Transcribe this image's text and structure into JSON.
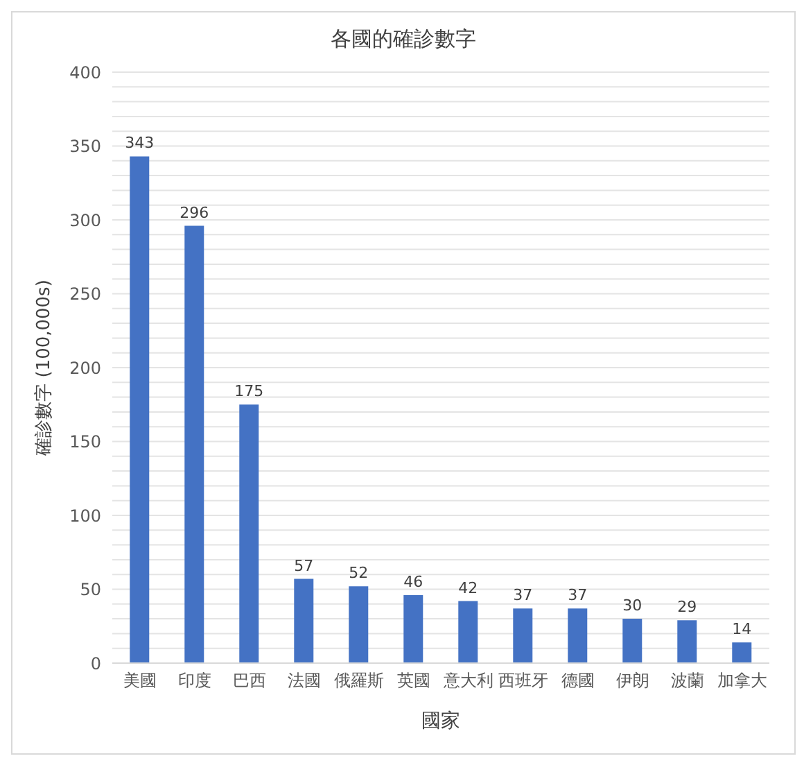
{
  "chart_data": {
    "type": "bar",
    "title": "各國的確診數字",
    "xlabel": "國家",
    "ylabel": "確診數字 (100,000s)",
    "categories": [
      "美國",
      "印度",
      "巴西",
      "法國",
      "俄羅斯",
      "英國",
      "意大利",
      "西班牙",
      "德國",
      "伊朗",
      "波蘭",
      "加拿大"
    ],
    "values": [
      343,
      296,
      175,
      57,
      52,
      46,
      42,
      37,
      37,
      30,
      29,
      14
    ],
    "color": "#4472c4",
    "data_labels": true,
    "grid": "y",
    "ylim": [
      0,
      400
    ],
    "yticks": [
      0,
      {
        "value": 10,
        "label": null
      },
      {
        "value": 20,
        "label": null
      },
      {
        "value": 30,
        "label": null
      },
      {
        "value": 40,
        "label": null
      },
      50,
      {
        "value": 60,
        "label": null
      },
      {
        "value": 70,
        "label": null
      },
      {
        "value": 80,
        "label": null
      },
      {
        "value": 90,
        "label": null
      },
      100,
      {
        "value": 110,
        "label": null
      },
      {
        "value": 120,
        "label": null
      },
      {
        "value": 130,
        "label": null
      },
      {
        "value": 140,
        "label": null
      },
      150,
      {
        "value": 160,
        "label": null
      },
      {
        "value": 170,
        "label": null
      },
      {
        "value": 180,
        "label": null
      },
      {
        "value": 190,
        "label": null
      },
      200,
      {
        "value": 210,
        "label": null
      },
      {
        "value": 220,
        "label": null
      },
      {
        "value": 230,
        "label": null
      },
      {
        "value": 240,
        "label": null
      },
      250,
      {
        "value": 260,
        "label": null
      },
      {
        "value": 270,
        "label": null
      },
      {
        "value": 280,
        "label": null
      },
      {
        "value": 290,
        "label": null
      },
      300,
      {
        "value": 310,
        "label": null
      },
      {
        "value": 320,
        "label": null
      },
      {
        "value": 330,
        "label": null
      },
      {
        "value": 340,
        "label": null
      },
      350,
      {
        "value": 360,
        "label": null
      },
      {
        "value": 370,
        "label": null
      },
      {
        "value": 380,
        "label": null
      },
      {
        "value": 390,
        "label": null
      },
      400
    ]
  }
}
